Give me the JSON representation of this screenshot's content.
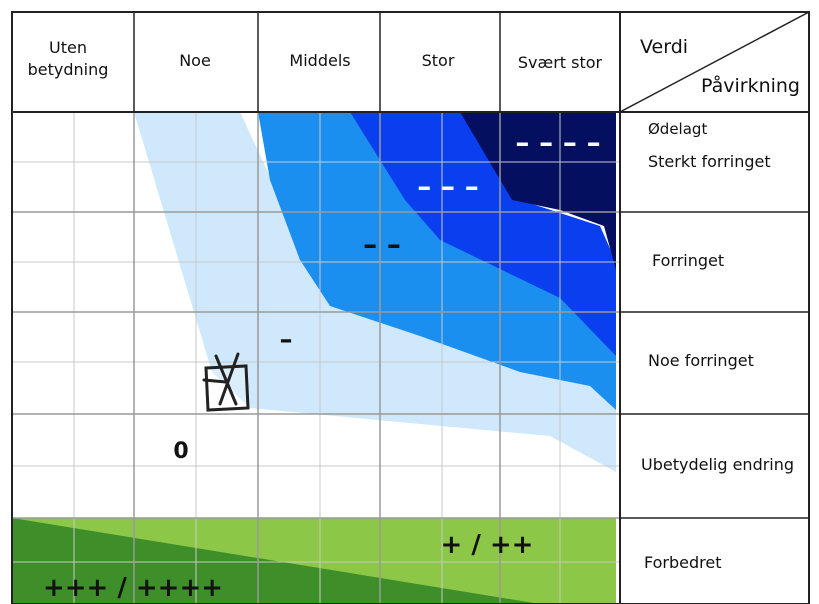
{
  "columns": [
    "Uten betydning",
    "Noe",
    "Middels",
    "Stor",
    "Svært stor"
  ],
  "column_lines": {
    "uten": [
      "Uten",
      "betydning"
    ]
  },
  "corner": {
    "top": "Verdi",
    "bottom": "Påvirkning"
  },
  "rows": {
    "odelagt": "Ødelagt",
    "sterkt": "Sterkt forringet",
    "forringet": "Forringet",
    "noe_forringet": "Noe forringet",
    "ubetydelig": "Ubetydelig endring",
    "forbedret": "Forbedret"
  },
  "symbols": {
    "neg4": "– – – –",
    "neg3": "– – –",
    "neg2": "– –",
    "neg1": "–",
    "zero": "0",
    "pos_mid": "+ / ++",
    "pos_high": "+++ / ++++"
  },
  "colors": {
    "light_blue": "#cfe8fb",
    "mid_blue": "#1a8fef",
    "blue": "#0a3ff0",
    "navy": "#040f60",
    "light_green": "#8cc748",
    "dark_green": "#3e8e2a",
    "grid": "#c9c9c9",
    "border": "#222222"
  },
  "marker": {
    "icon": "checked-box-icon"
  }
}
